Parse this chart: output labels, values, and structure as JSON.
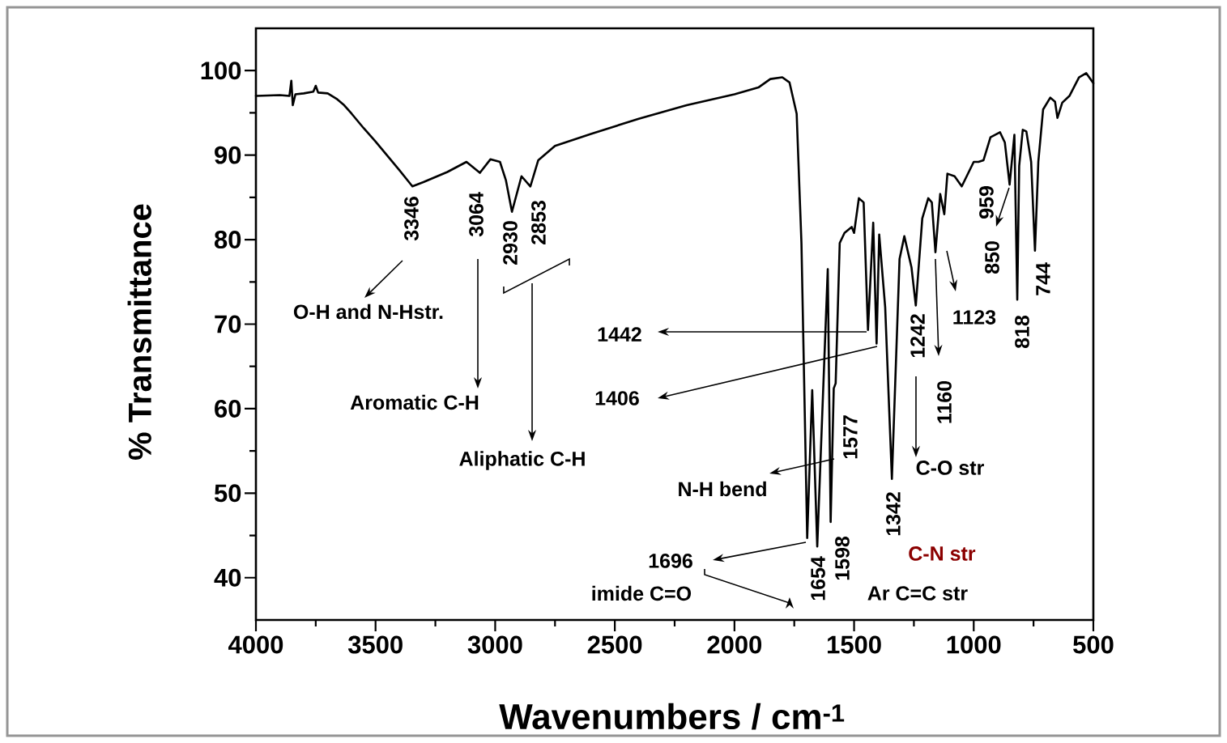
{
  "chart_data": {
    "type": "line",
    "xlabel": "Wavenumbers / cm$^{-1}$",
    "ylabel": "% Transmittance",
    "xlim": [
      4000,
      500
    ],
    "ylim": [
      35,
      105
    ],
    "xticks": [
      4000,
      3500,
      3000,
      2500,
      2000,
      1500,
      1000,
      500
    ],
    "yticks": [
      40,
      50,
      60,
      70,
      80,
      90,
      100
    ],
    "series": [
      {
        "color": "#000000",
        "x": [
          4000,
          3900,
          3860,
          3852,
          3846,
          3835,
          3800,
          3760,
          3750,
          3740,
          3700,
          3660,
          3631,
          3600,
          3550,
          3500,
          3450,
          3400,
          3346,
          3300,
          3250,
          3200,
          3120,
          3064,
          3020,
          2980,
          2955,
          2930,
          2890,
          2853,
          2820,
          2750,
          2600,
          2400,
          2200,
          2000,
          1900,
          1850,
          1800,
          1770,
          1740,
          1720,
          1696,
          1675,
          1654,
          1610,
          1598,
          1585,
          1577,
          1560,
          1540,
          1510,
          1500,
          1480,
          1460,
          1442,
          1420,
          1406,
          1395,
          1370,
          1342,
          1310,
          1290,
          1260,
          1242,
          1215,
          1190,
          1175,
          1160,
          1140,
          1123,
          1110,
          1080,
          1050,
          1000,
          980,
          959,
          930,
          890,
          870,
          850,
          830,
          818,
          810,
          795,
          780,
          760,
          744,
          730,
          710,
          680,
          660,
          650,
          630,
          600,
          560,
          530,
          500
        ],
        "values": [
          97.0,
          97.1,
          97.0,
          98.8,
          95.9,
          97.2,
          97.3,
          97.5,
          98.2,
          97.4,
          97.3,
          96.6,
          95.9,
          94.9,
          93.2,
          91.6,
          89.9,
          88.2,
          86.3,
          86.8,
          87.4,
          88.0,
          89.2,
          87.9,
          89.5,
          89.2,
          87.0,
          83.3,
          87.5,
          86.3,
          89.4,
          91.1,
          92.5,
          94.3,
          95.9,
          97.2,
          98.0,
          99.0,
          99.2,
          98.6,
          94.9,
          79.6,
          44.7,
          62.2,
          43.7,
          76.5,
          46.6,
          62.4,
          63.0,
          79.6,
          80.8,
          81.5,
          80.8,
          84.9,
          84.4,
          69.3,
          82.0,
          67.7,
          80.6,
          72.0,
          51.7,
          77.7,
          80.4,
          76.7,
          72.2,
          82.5,
          84.9,
          84.4,
          78.5,
          85.4,
          83.0,
          87.8,
          87.5,
          86.3,
          89.2,
          89.2,
          89.4,
          92.1,
          92.7,
          91.5,
          86.5,
          92.4,
          72.9,
          88.7,
          93.0,
          92.8,
          89.2,
          78.7,
          89.2,
          95.4,
          96.8,
          96.3,
          94.4,
          96.2,
          97.0,
          99.2,
          99.7,
          98.5
        ]
      }
    ],
    "annotations": [
      "3346",
      "3064",
      "2930",
      "2853",
      "O-H and N-Hstr.",
      "Aromatic C-H",
      "Aliphatic C-H",
      "1442",
      "1406",
      "1577",
      "N-H bend",
      "1696",
      "imide C=O",
      "1654",
      "1598",
      "Ar C=C str",
      "1342",
      "C-N str",
      "1242",
      "C-O str",
      "1160",
      "1123",
      "959",
      "850",
      "818",
      "744"
    ]
  }
}
